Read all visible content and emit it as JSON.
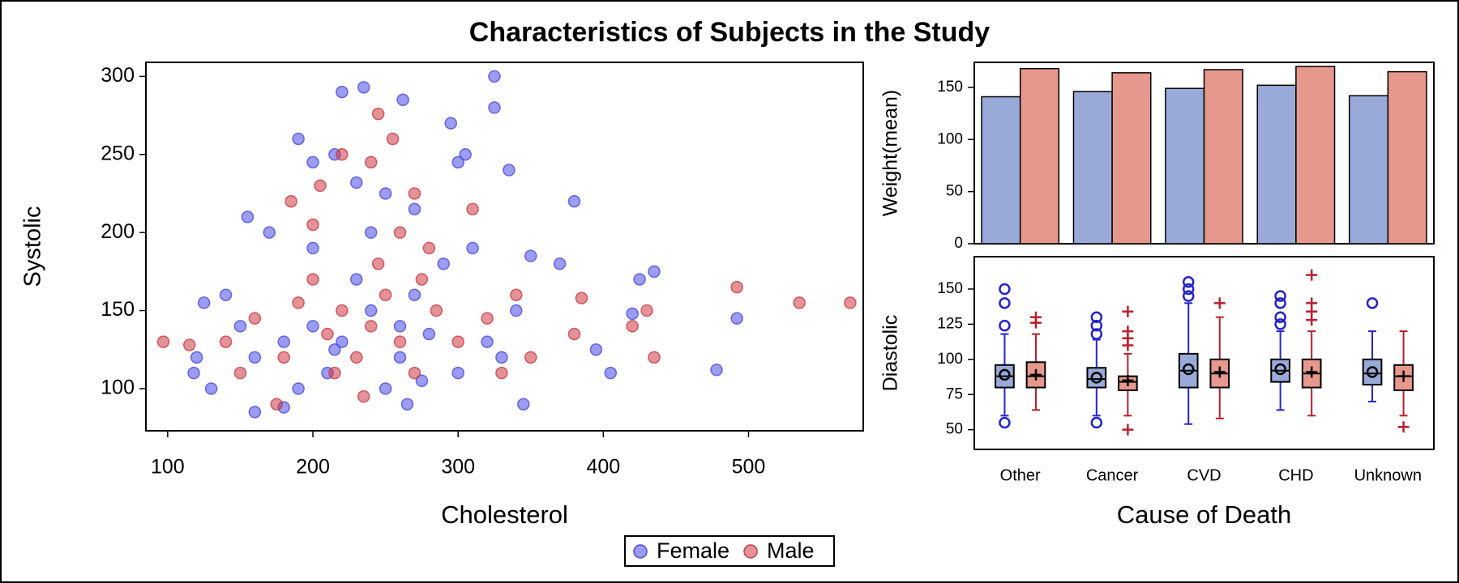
{
  "title": "Characteristics of Subjects in the Study",
  "chart_data": [
    {
      "type": "scatter",
      "x_label": "Cholesterol",
      "y_label": "Systolic",
      "xlim": [
        85,
        579
      ],
      "ylim": [
        73,
        309
      ],
      "xticks": [
        100,
        200,
        300,
        400,
        500
      ],
      "yticks": [
        100,
        150,
        200,
        250,
        300
      ],
      "series": [
        {
          "name": "Female",
          "color": "#4a4ae6",
          "x": [
            235,
            220,
            262,
            325,
            325,
            295,
            190,
            305,
            300,
            335,
            215,
            200,
            230,
            155,
            380,
            250,
            170,
            270,
            350,
            370,
            340,
            345,
            160,
            180,
            265,
            405,
            395,
            420,
            425,
            435,
            478,
            492,
            120,
            118,
            130,
            140,
            125,
            200,
            220,
            240,
            260,
            280,
            300,
            210,
            190,
            250,
            320,
            230,
            270,
            180,
            160,
            150,
            290,
            310,
            200,
            240,
            260,
            215,
            275,
            330
          ],
          "values": [
            293,
            290,
            285,
            300,
            280,
            270,
            260,
            250,
            245,
            240,
            250,
            245,
            232,
            210,
            220,
            225,
            200,
            215,
            185,
            180,
            150,
            90,
            85,
            88,
            90,
            110,
            125,
            148,
            170,
            175,
            112,
            145,
            120,
            110,
            100,
            160,
            155,
            140,
            130,
            150,
            120,
            135,
            110,
            110,
            100,
            100,
            130,
            170,
            160,
            130,
            120,
            140,
            180,
            190,
            190,
            200,
            140,
            125,
            105,
            120
          ]
        },
        {
          "name": "Male",
          "color": "#cc3a44",
          "x": [
            97,
            115,
            570,
            535,
            492,
            435,
            430,
            420,
            385,
            245,
            255,
            220,
            240,
            270,
            310,
            205,
            185,
            175,
            235,
            260,
            280,
            200,
            220,
            240,
            260,
            180,
            160,
            300,
            320,
            340,
            270,
            250,
            230,
            210,
            190,
            150,
            140,
            285,
            215,
            245,
            380,
            350,
            275,
            200,
            330
          ],
          "values": [
            130,
            128,
            155,
            155,
            165,
            120,
            150,
            140,
            158,
            276,
            260,
            250,
            245,
            225,
            215,
            230,
            220,
            90,
            95,
            200,
            190,
            170,
            150,
            140,
            130,
            120,
            145,
            130,
            145,
            160,
            110,
            160,
            120,
            135,
            155,
            110,
            130,
            150,
            110,
            180,
            135,
            120,
            170,
            205,
            110
          ]
        }
      ]
    },
    {
      "type": "bar",
      "y_label": "Weight(mean)",
      "ylim": [
        0,
        174
      ],
      "yticks": [
        0,
        50,
        100,
        150
      ],
      "series": [
        {
          "name": "Female",
          "color": "#9aaad8",
          "values": [
            141,
            146,
            149,
            152,
            142
          ]
        },
        {
          "name": "Male",
          "color": "#e6988c",
          "values": [
            168,
            164,
            167,
            170,
            165
          ]
        }
      ]
    },
    {
      "type": "box",
      "y_label": "Diastolic",
      "x_label": "Cause of Death",
      "categories": [
        "Other",
        "Cancer",
        "CVD",
        "CHD",
        "Unknown"
      ],
      "ylim": [
        36,
        173
      ],
      "yticks": [
        50,
        75,
        100,
        125,
        150
      ],
      "series": [
        {
          "name": "Female",
          "color": "#2424cc",
          "fill": "#9aaad8",
          "marker": "circle",
          "boxes": [
            {
              "min": 60,
              "q1": 80,
              "median": 88,
              "q3": 96,
              "max": 118,
              "mean": 89,
              "outliers": [
                55,
                124,
                140,
                150
              ]
            },
            {
              "min": 60,
              "q1": 80,
              "median": 86,
              "q3": 94,
              "max": 114,
              "mean": 87,
              "outliers": [
                55,
                118,
                124,
                130
              ]
            },
            {
              "min": 54,
              "q1": 80,
              "median": 92,
              "q3": 104,
              "max": 140,
              "mean": 93,
              "outliers": [
                145,
                150,
                155
              ]
            },
            {
              "min": 64,
              "q1": 84,
              "median": 92,
              "q3": 100,
              "max": 120,
              "mean": 93,
              "outliers": [
                125,
                130,
                140,
                145
              ]
            },
            {
              "min": 70,
              "q1": 82,
              "median": 90,
              "q3": 100,
              "max": 120,
              "mean": 91,
              "outliers": [
                140
              ]
            }
          ]
        },
        {
          "name": "Male",
          "color": "#b81f2c",
          "fill": "#e6988c",
          "marker": "plus",
          "boxes": [
            {
              "min": 64,
              "q1": 80,
              "median": 88,
              "q3": 98,
              "max": 118,
              "mean": 89,
              "outliers": [
                126,
                130
              ]
            },
            {
              "min": 60,
              "q1": 78,
              "median": 84,
              "q3": 88,
              "max": 104,
              "mean": 85,
              "outliers": [
                50,
                110,
                115,
                120,
                134
              ]
            },
            {
              "min": 58,
              "q1": 80,
              "median": 90,
              "q3": 100,
              "max": 130,
              "mean": 91,
              "outliers": [
                140
              ]
            },
            {
              "min": 60,
              "q1": 80,
              "median": 90,
              "q3": 100,
              "max": 120,
              "mean": 91,
              "outliers": [
                128,
                134,
                140,
                160
              ]
            },
            {
              "min": 60,
              "q1": 78,
              "median": 88,
              "q3": 96,
              "max": 120,
              "mean": 88,
              "outliers": [
                52
              ]
            }
          ]
        }
      ]
    }
  ]
}
